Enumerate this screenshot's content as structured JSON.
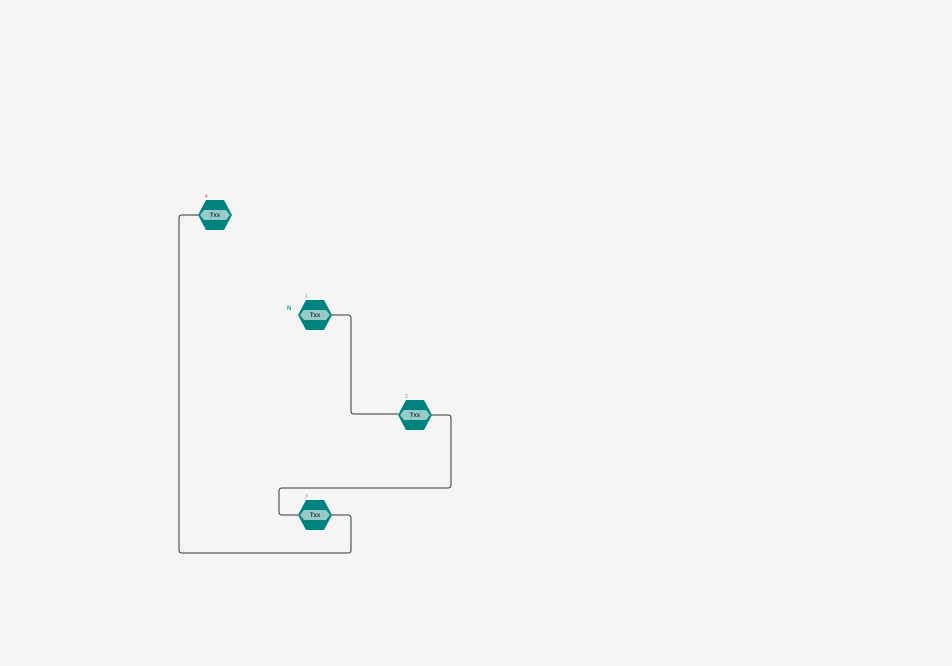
{
  "diagram": {
    "background": "#f5f5f5",
    "colors": {
      "hex_fill": "#00827f",
      "hex_band": "#95ccc9",
      "link": "#333333",
      "index_red": "#d9534f",
      "index_grey": "#888888",
      "terminus": "#1a9aa0"
    },
    "terminus_label": "N",
    "nodes": [
      {
        "id": "n1",
        "label": "Txx",
        "index": "1",
        "index_color": "grey"
      },
      {
        "id": "n2",
        "label": "Txx",
        "index": "2",
        "index_color": "grey"
      },
      {
        "id": "n3",
        "label": "Txx",
        "index": "3",
        "index_color": "grey"
      },
      {
        "id": "n4",
        "label": "Txx",
        "index": "4",
        "index_color": "red"
      }
    ],
    "links": [
      {
        "from": "n1",
        "to": "n2"
      },
      {
        "from": "n2",
        "to": "n3"
      },
      {
        "from": "n3",
        "to": "n4"
      }
    ]
  }
}
